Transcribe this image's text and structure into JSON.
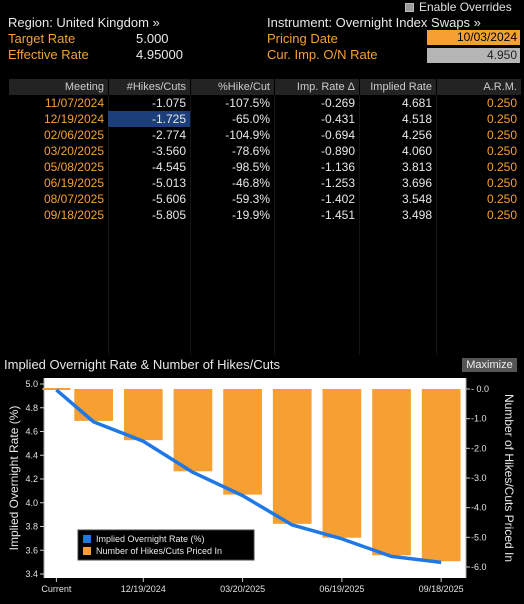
{
  "enable_overrides": {
    "label": "Enable Overrides"
  },
  "header": {
    "region": "Region: United Kingdom »",
    "instrument": "Instrument: Overnight Index Swaps »",
    "target_rate_label": "Target Rate",
    "target_rate_value": "5.000",
    "effective_rate_label": "Effective Rate",
    "effective_rate_value": "4.95000",
    "pricing_date_label": "Pricing Date",
    "pricing_date_value": "10/03/2024",
    "cur_imp_label": "Cur. Imp. O/N Rate",
    "cur_imp_value": "4.950"
  },
  "table": {
    "columns": [
      "Meeting",
      "#Hikes/Cuts",
      "%Hike/Cut",
      "Imp. Rate Δ",
      "Implied Rate",
      "A.R.M."
    ],
    "rows": [
      [
        "11/07/2024",
        "-1.075",
        "-107.5%",
        "-0.269",
        "4.681",
        "0.250"
      ],
      [
        "12/19/2024",
        "-1.725",
        "-65.0%",
        "-0.431",
        "4.518",
        "0.250"
      ],
      [
        "02/06/2025",
        "-2.774",
        "-104.9%",
        "-0.694",
        "4.256",
        "0.250"
      ],
      [
        "03/20/2025",
        "-3.560",
        "-78.6%",
        "-0.890",
        "4.060",
        "0.250"
      ],
      [
        "05/08/2025",
        "-4.545",
        "-98.5%",
        "-1.136",
        "3.813",
        "0.250"
      ],
      [
        "06/19/2025",
        "-5.013",
        "-46.8%",
        "-1.253",
        "3.696",
        "0.250"
      ],
      [
        "08/07/2025",
        "-5.606",
        "-59.3%",
        "-1.402",
        "3.548",
        "0.250"
      ],
      [
        "09/18/2025",
        "-5.805",
        "-19.9%",
        "-1.451",
        "3.498",
        "0.250"
      ]
    ]
  },
  "chart_panel": {
    "title": "Implied Overnight Rate & Number of Hikes/Cuts",
    "maximize_label": "Maximize"
  },
  "chart_data": {
    "type": "bar",
    "title": "Implied Overnight Rate & Number of Hikes/Cuts",
    "categories": [
      "Current",
      "11/07/2024",
      "12/19/2024",
      "02/06/2025",
      "03/20/2025",
      "05/08/2025",
      "06/19/2025",
      "08/07/2025",
      "09/18/2025"
    ],
    "x_tick_labels": [
      "Current",
      "12/19/2024",
      "03/20/2025",
      "06/19/2025",
      "09/18/2025"
    ],
    "series": [
      {
        "name": "Implied Overnight Rate (%)",
        "type": "line",
        "axis": "left",
        "color": "#1f78e6",
        "values": [
          4.95,
          4.681,
          4.518,
          4.256,
          4.06,
          3.813,
          3.696,
          3.548,
          3.498
        ]
      },
      {
        "name": "Number of Hikes/Cuts Priced In",
        "type": "bar",
        "axis": "right",
        "color": "#f6a033",
        "values": [
          0,
          -1.075,
          -1.725,
          -2.774,
          -3.56,
          -4.545,
          -5.013,
          -5.606,
          -5.805
        ]
      }
    ],
    "ylabel": "Implied Overnight Rate (%)",
    "ylabel_right": "Number of Hikes/Cuts Priced In",
    "ylim": [
      3.4,
      5.0
    ],
    "ylim_right": [
      -6.0,
      0.0
    ],
    "y_ticks": [
      "5.0",
      "4.8",
      "4.6",
      "4.4",
      "4.2",
      "4.0",
      "3.8",
      "3.6",
      "3.4"
    ],
    "y_ticks_right": [
      "0.0",
      "-1.0",
      "-2.0",
      "-3.0",
      "-4.0",
      "-5.0",
      "-6.0"
    ],
    "legend_position": "bottom-left",
    "grid": false
  }
}
